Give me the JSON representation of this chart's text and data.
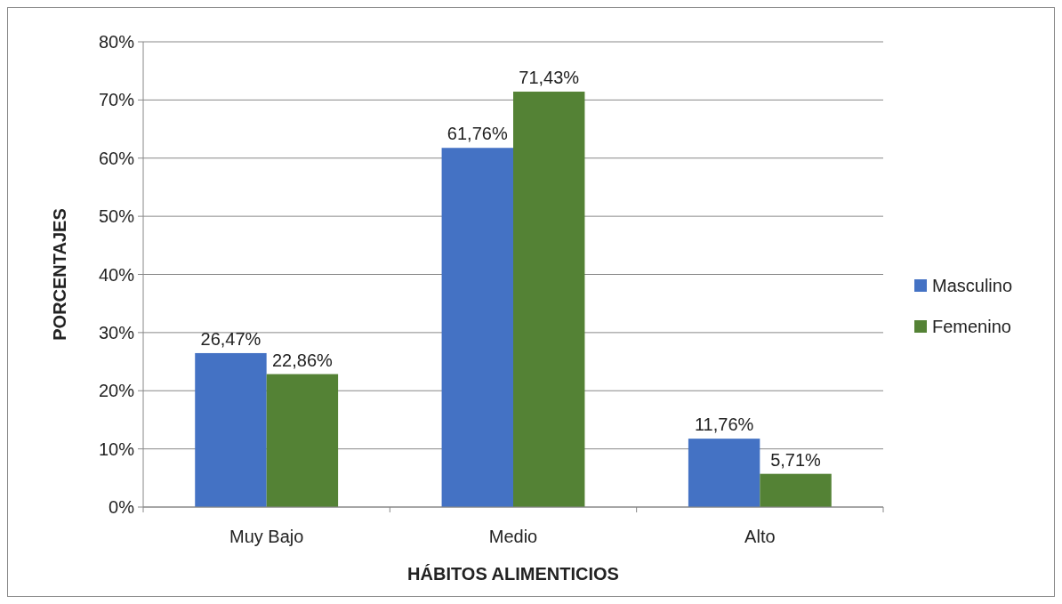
{
  "chart_data": {
    "type": "bar",
    "xlabel": "HÁBITOS ALIMENTICIOS",
    "ylabel": "PORCENTAJES",
    "categories": [
      "Muy Bajo",
      "Medio",
      "Alto"
    ],
    "series": [
      {
        "name": "Masculino",
        "color": "#4472c4",
        "values": [
          26.47,
          61.76,
          11.76
        ],
        "value_labels": [
          "26,47%",
          "61,76%",
          "11,76%"
        ]
      },
      {
        "name": "Femenino",
        "color": "#548235",
        "values": [
          22.86,
          71.43,
          5.71
        ],
        "value_labels": [
          "22,86%",
          "71,43%",
          "5,71%"
        ]
      }
    ],
    "ylim": [
      0,
      80
    ],
    "yticks": [
      {
        "value": 0,
        "label": "0%"
      },
      {
        "value": 10,
        "label": "10%"
      },
      {
        "value": 20,
        "label": "20%"
      },
      {
        "value": 30,
        "label": "30%"
      },
      {
        "value": 40,
        "label": "40%"
      },
      {
        "value": 50,
        "label": "50%"
      },
      {
        "value": 60,
        "label": "60%"
      },
      {
        "value": 70,
        "label": "70%"
      },
      {
        "value": 80,
        "label": "80%"
      }
    ],
    "grid": "y",
    "legend": "right"
  }
}
